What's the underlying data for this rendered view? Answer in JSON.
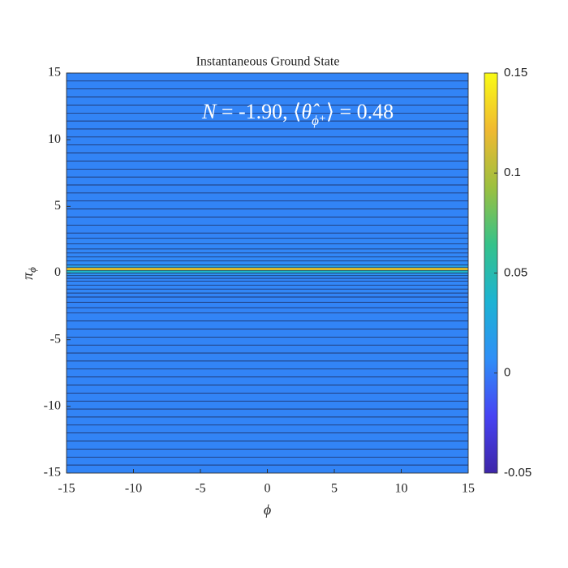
{
  "chart_data": {
    "type": "heatmap",
    "title": "Instantaneous Ground State",
    "xlabel": "ϕ",
    "ylabel": [
      "π",
      "ϕ"
    ],
    "annotation": [
      "N",
      " =  -1.90, ⟨",
      "θ̂",
      "ϕ⁺",
      "⟩ =  0.48"
    ],
    "xlim": [
      -15,
      15
    ],
    "xticks": [
      -15,
      -10,
      -5,
      0,
      5,
      10,
      15
    ],
    "ylim": [
      -15,
      15
    ],
    "yticks": [
      -15,
      -10,
      -5,
      0,
      5,
      10,
      15
    ],
    "y_edges": [
      15,
      14.4,
      13.8,
      13.2,
      12.6,
      12,
      11.4,
      10.8,
      10.2,
      9.6,
      9,
      8.4,
      7.8,
      7.2,
      6.6,
      6,
      5.4,
      4.8,
      4.2,
      3.6,
      3,
      2.6,
      2.2,
      1.8,
      1.5,
      1.2,
      0.9,
      0.6,
      0.4,
      0.2,
      0,
      -0.2,
      -0.4,
      -0.6,
      -0.9,
      -1.2,
      -1.5,
      -1.8,
      -2.2,
      -2.6,
      -3,
      -3.6,
      -4.2,
      -4.8,
      -5.4,
      -6,
      -6.6,
      -7.2,
      -7.8,
      -8.4,
      -9,
      -9.6,
      -10.2,
      -10.8,
      -11.4,
      -12,
      -12.6,
      -13.2,
      -13.8,
      -14.4,
      -15
    ],
    "values": [
      0.003,
      0.003,
      0.003,
      0.003,
      0.003,
      0.003,
      0.003,
      0.003,
      0.003,
      0.003,
      0.003,
      0.003,
      0.003,
      0.003,
      0.003,
      0.003,
      0.003,
      0.003,
      0.003,
      0.003,
      0.003,
      0.004,
      0.004,
      0.004,
      0.004,
      0.005,
      0.006,
      0.02,
      0.13,
      0.04,
      0.01,
      0.005,
      0.004,
      0.004,
      0.004,
      0.004,
      0.003,
      0.003,
      0.003,
      0.003,
      0.003,
      0.003,
      0.003,
      0.003,
      0.003,
      0.003,
      0.003,
      0.003,
      0.003,
      0.003,
      0.003,
      0.003,
      0.003,
      0.003,
      0.003,
      0.003,
      0.003,
      0.003,
      0.003,
      0.003
    ],
    "clim": [
      -0.05,
      0.15
    ],
    "cticks": [
      -0.05,
      0,
      0.05,
      0.1,
      0.15
    ],
    "colormap": [
      "#3e26a8",
      "#4743f3",
      "#2f8ff7",
      "#1cb3d3",
      "#35c28a",
      "#9cc03f",
      "#f0b931",
      "#f9fb15"
    ],
    "line_color": "#1a1f45"
  }
}
